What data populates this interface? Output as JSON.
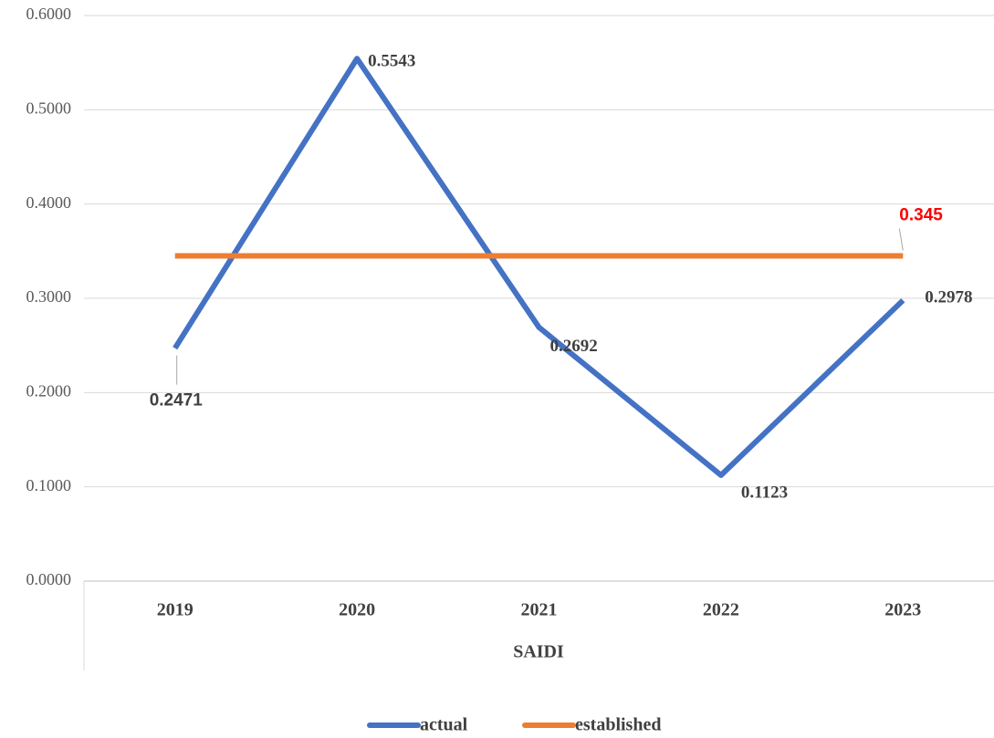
{
  "chart_data": {
    "type": "line",
    "categories": [
      "2019",
      "2020",
      "2021",
      "2022",
      "2023"
    ],
    "x_label": "SAIDI",
    "series": [
      {
        "name": "actual",
        "color": "#4472c4",
        "values": [
          0.2471,
          0.5543,
          0.2692,
          0.1123,
          0.2978
        ]
      },
      {
        "name": "established",
        "color": "#ed7d31",
        "values": [
          0.345,
          0.345,
          0.345,
          0.345,
          0.345
        ],
        "value_labels": [
          null,
          null,
          null,
          null,
          "0.345"
        ],
        "label_color": "#ff0000"
      }
    ],
    "ylim": [
      0,
      0.6
    ],
    "yticks": [
      {
        "value": 0,
        "label": "0.0000"
      },
      {
        "value": 0.1,
        "label": "0.1000"
      },
      {
        "value": 0.2,
        "label": "0.2000"
      },
      {
        "value": 0.3,
        "label": "0.3000"
      },
      {
        "value": 0.4,
        "label": "0.4000"
      },
      {
        "value": 0.5,
        "label": "0.5000"
      },
      {
        "value": 0.6,
        "label": "0.6000"
      }
    ],
    "grid": true,
    "legend": "bottom"
  }
}
